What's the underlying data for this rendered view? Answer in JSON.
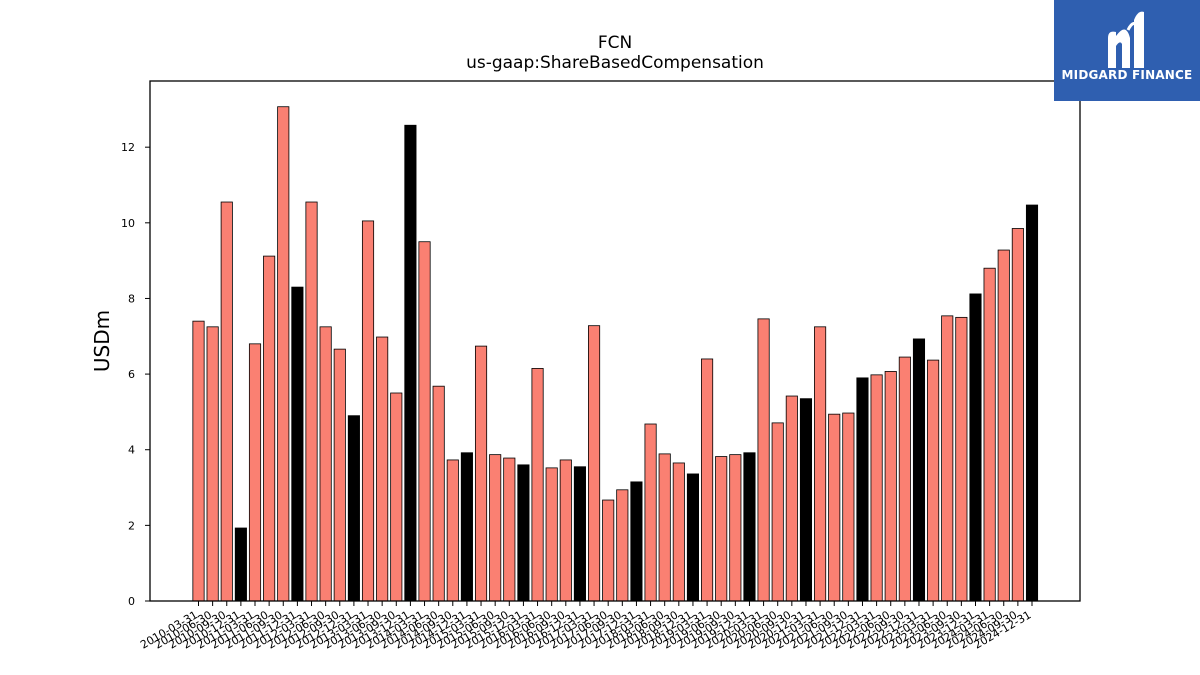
{
  "colors": {
    "bar_normal": "#fa8072",
    "bar_highlight": "#000000",
    "bar_edge": "#000000",
    "logo_bg": "#2f5fb0",
    "logo_fg": "#ffffff"
  },
  "logo": {
    "text": "MIDGARD FINANCE",
    "icon": "midgard-finance-logo-icon"
  },
  "chart_data": {
    "type": "bar",
    "title": "FCN",
    "subtitle": "us-gaap:ShareBasedCompensation",
    "ylabel": "USDm",
    "xlabel": "",
    "ylim": [
      0,
      13.75
    ],
    "yticks": [
      0,
      2,
      4,
      6,
      8,
      10,
      12
    ],
    "grid": false,
    "categories": [
      "2010-03-31",
      "2010-06-30",
      "2010-09-30",
      "2010-12-31",
      "2011-03-31",
      "2011-06-30",
      "2011-09-30",
      "2011-12-31",
      "2012-03-31",
      "2012-06-30",
      "2012-09-30",
      "2012-12-31",
      "2013-03-31",
      "2013-06-30",
      "2013-09-30",
      "2013-12-31",
      "2014-03-31",
      "2014-06-30",
      "2014-09-30",
      "2014-12-31",
      "2015-03-31",
      "2015-06-30",
      "2015-09-30",
      "2015-12-31",
      "2016-03-31",
      "2016-06-30",
      "2016-09-30",
      "2016-12-31",
      "2017-03-31",
      "2017-06-30",
      "2017-09-30",
      "2017-12-31",
      "2018-03-31",
      "2018-06-30",
      "2018-09-30",
      "2018-12-31",
      "2019-03-31",
      "2019-06-30",
      "2019-09-30",
      "2019-12-31",
      "2020-03-31",
      "2020-06-30",
      "2020-09-30",
      "2020-12-31",
      "2021-03-31",
      "2021-06-30",
      "2021-09-30",
      "2021-12-31",
      "2022-03-31",
      "2022-06-30",
      "2022-09-30",
      "2022-12-31",
      "2023-03-31",
      "2023-06-30",
      "2023-09-30",
      "2023-12-31",
      "2024-03-31",
      "2024-06-30",
      "2024-09-30",
      "2024-12-31"
    ],
    "values": [
      7.4,
      7.25,
      10.55,
      1.93,
      6.8,
      9.12,
      13.07,
      8.3,
      10.55,
      7.25,
      6.66,
      4.9,
      10.05,
      6.98,
      5.5,
      12.58,
      9.5,
      5.68,
      3.73,
      3.92,
      6.74,
      3.87,
      3.78,
      3.6,
      6.15,
      3.52,
      3.73,
      3.55,
      7.28,
      2.67,
      2.94,
      3.15,
      4.68,
      3.89,
      3.65,
      3.36,
      6.4,
      3.82,
      3.87,
      3.92,
      7.46,
      4.71,
      5.42,
      5.35,
      7.25,
      4.94,
      4.97,
      5.9,
      5.98,
      6.07,
      6.45,
      6.93,
      6.37,
      7.54,
      7.5,
      8.12,
      8.8,
      9.28,
      9.85,
      10.47
    ],
    "highlighted": [
      false,
      false,
      false,
      true,
      false,
      false,
      false,
      true,
      false,
      false,
      false,
      true,
      false,
      false,
      false,
      true,
      false,
      false,
      false,
      true,
      false,
      false,
      false,
      true,
      false,
      false,
      false,
      true,
      false,
      false,
      false,
      true,
      false,
      false,
      false,
      true,
      false,
      false,
      false,
      true,
      false,
      false,
      false,
      true,
      false,
      false,
      false,
      true,
      false,
      false,
      false,
      true,
      false,
      false,
      false,
      true,
      false,
      false,
      false,
      true
    ]
  }
}
